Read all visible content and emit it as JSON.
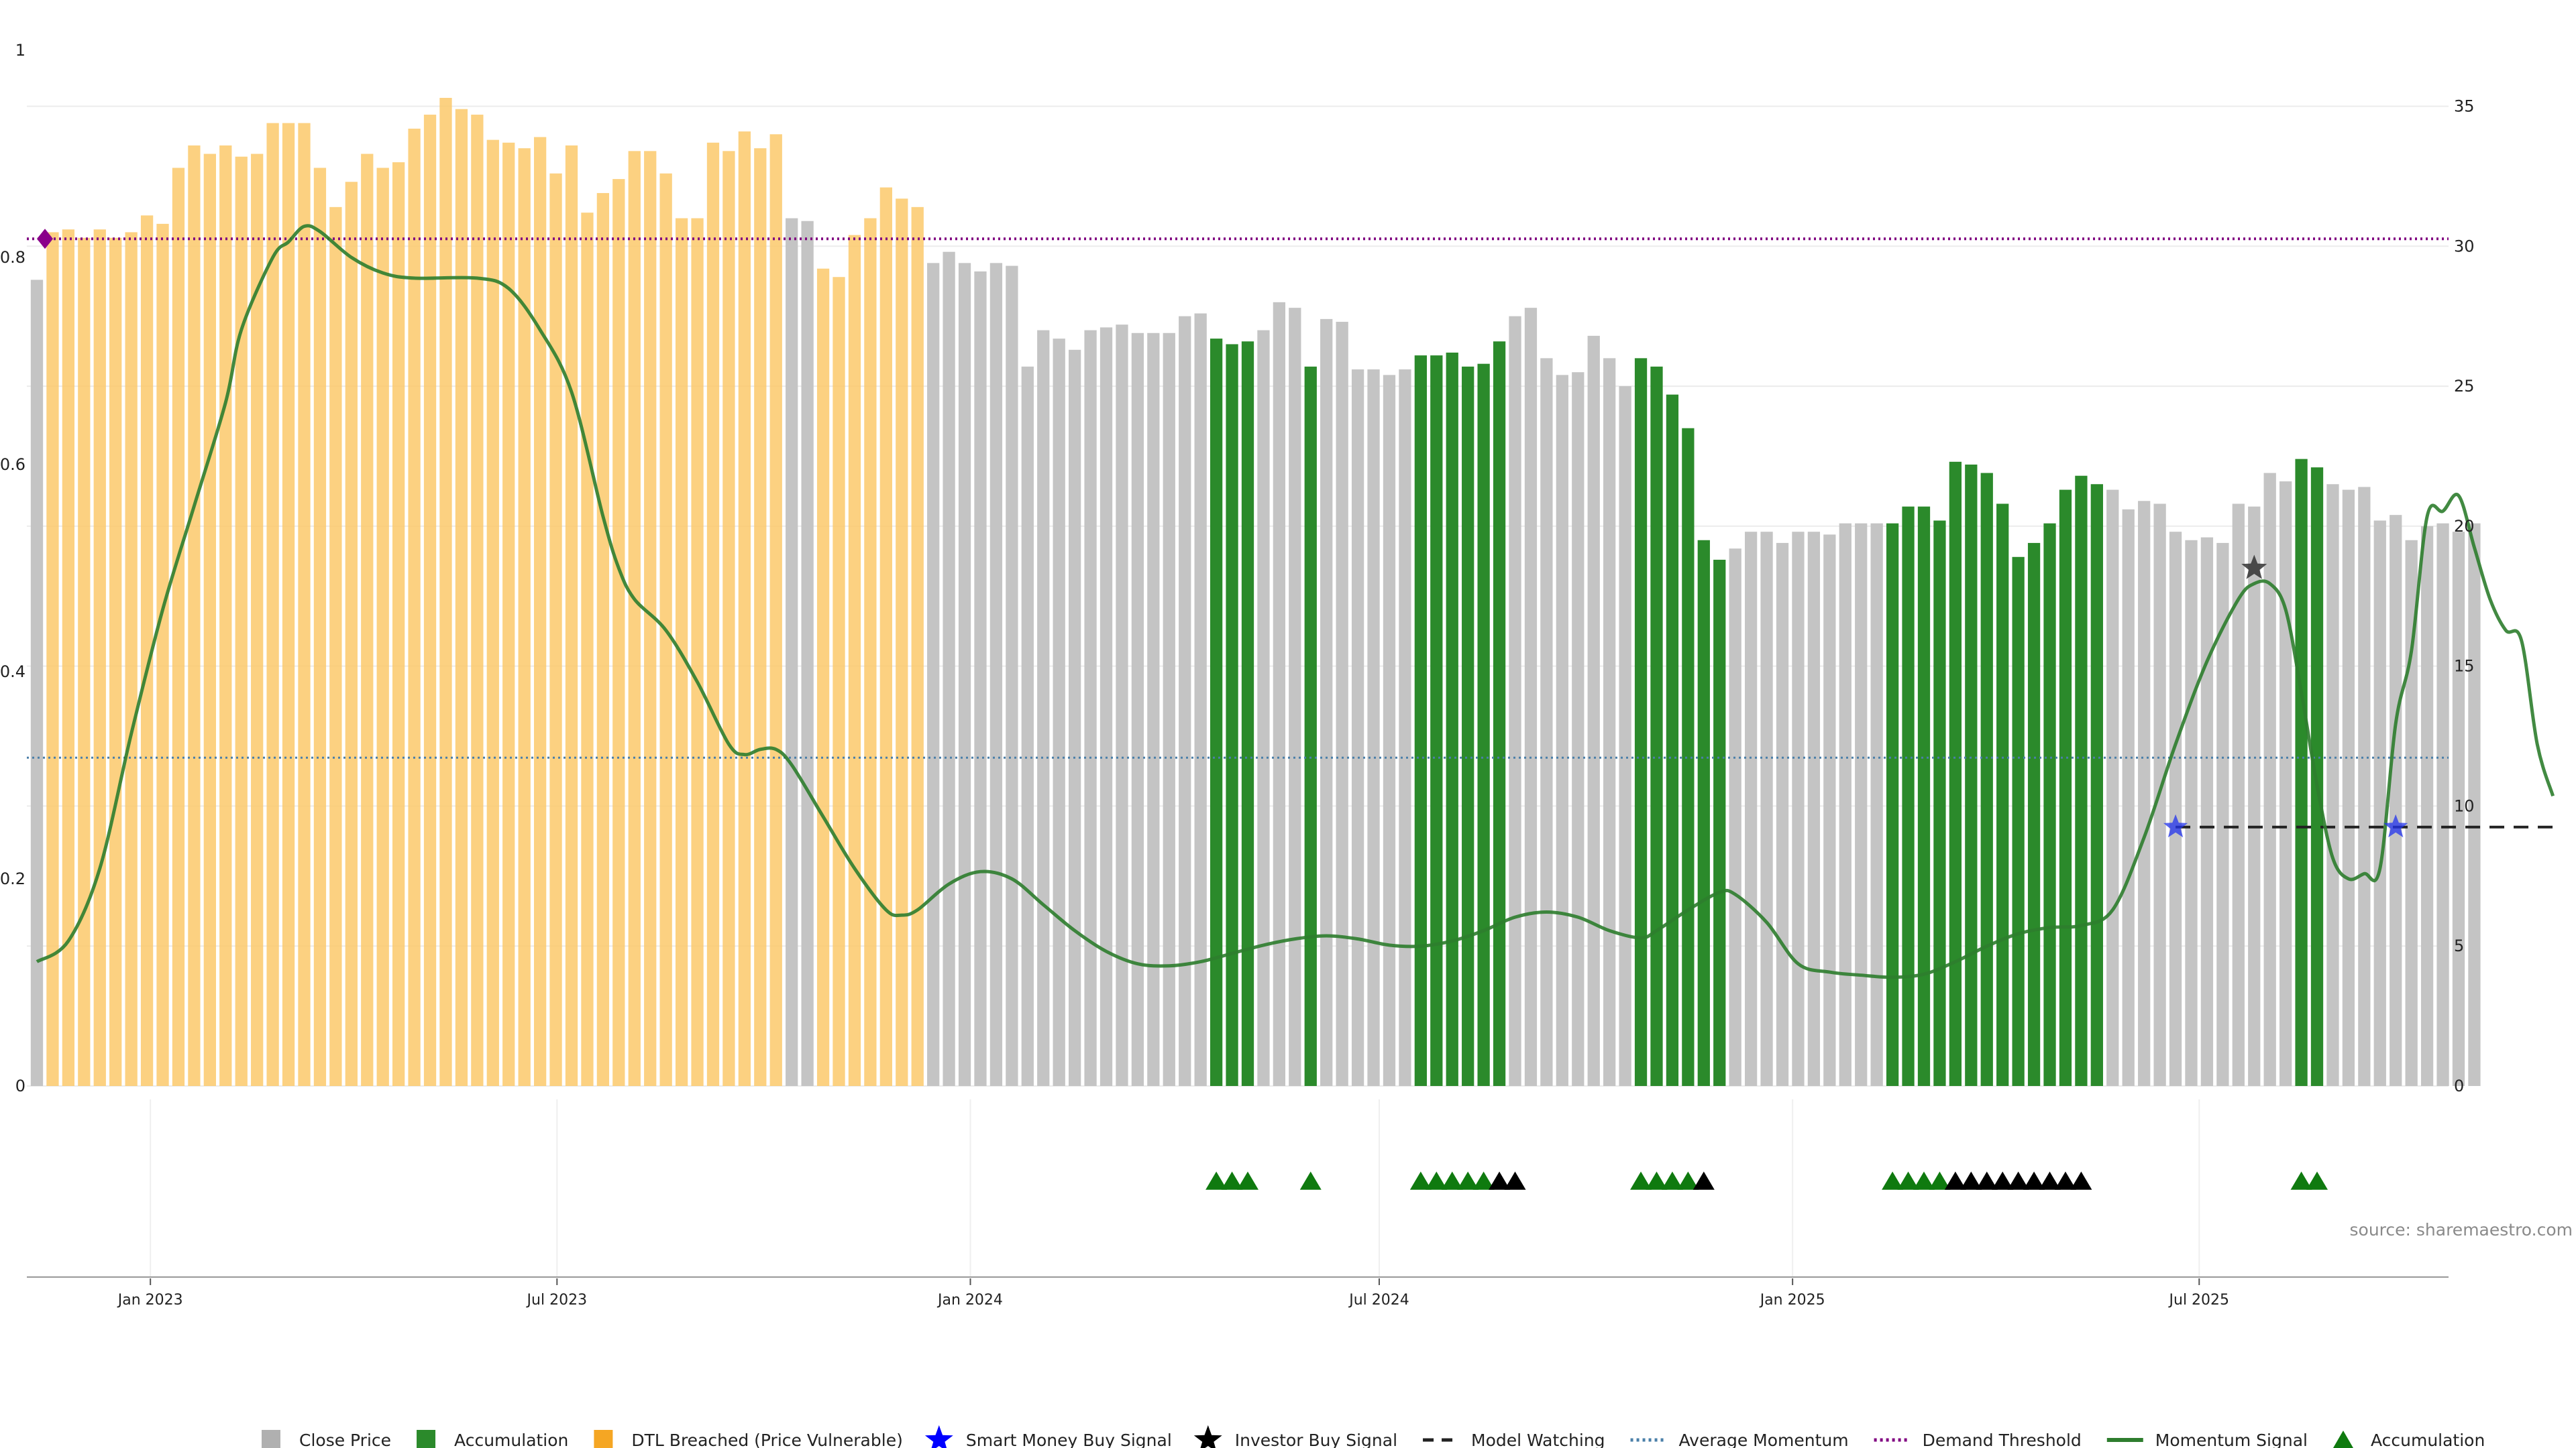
{
  "chart_data": {
    "type": "bar",
    "source": "source: sharemaestro.com",
    "left_axis": {
      "ticks": [
        0,
        0.2,
        0.4,
        0.6,
        0.8,
        1
      ],
      "tick_labels": [
        "0",
        "0.2",
        "0.4",
        "0.6",
        "0.8",
        "1"
      ],
      "range": [
        0,
        1
      ]
    },
    "right_axis": {
      "ticks": [
        0,
        5,
        10,
        15,
        20,
        25,
        30,
        35
      ],
      "range": [
        0,
        37
      ]
    },
    "x_axis": {
      "start": "2022-11-07",
      "end": "2025-10-20",
      "ticks": [
        {
          "date": "2023-01-01",
          "label": "Jan 2023"
        },
        {
          "date": "2023-07-01",
          "label": "Jul 2023"
        },
        {
          "date": "2024-01-01",
          "label": "Jan 2024"
        },
        {
          "date": "2024-07-01",
          "label": "Jul 2024"
        },
        {
          "date": "2025-01-01",
          "label": "Jan 2025"
        },
        {
          "date": "2025-07-01",
          "label": "Jul 2025"
        }
      ]
    },
    "close_price": {
      "start_week": "2022-11-07",
      "interval_days": 7,
      "values": [
        28.8,
        30.5,
        30.6,
        30.3,
        30.6,
        30.3,
        30.5,
        31.1,
        30.8,
        32.8,
        33.6,
        33.3,
        33.6,
        33.2,
        33.3,
        34.4,
        34.4,
        34.4,
        32.8,
        31.4,
        32.3,
        33.3,
        32.8,
        33.0,
        34.2,
        34.7,
        35.3,
        34.9,
        34.7,
        33.8,
        33.7,
        33.5,
        33.9,
        32.6,
        33.6,
        31.2,
        31.9,
        32.4,
        33.4,
        33.4,
        32.6,
        31.0,
        31.0,
        33.7,
        33.4,
        34.1,
        33.5,
        34.0,
        31.0,
        30.9,
        29.2,
        28.9,
        30.4,
        31.0,
        32.1,
        31.7,
        31.4,
        29.4,
        29.8,
        29.4,
        29.1,
        29.4,
        29.3,
        25.7,
        27.0,
        26.7,
        26.3,
        27.0,
        27.1,
        27.2,
        26.9,
        26.9,
        26.9,
        27.5,
        27.6,
        26.7,
        26.5,
        26.6,
        27.0,
        28.0,
        27.8,
        25.7,
        27.4,
        27.3,
        25.6,
        25.6,
        25.4,
        25.6,
        26.1,
        26.1,
        26.2,
        25.7,
        25.8,
        26.6,
        27.5,
        27.8,
        26.0,
        25.4,
        25.5,
        26.8,
        26.0,
        25.0,
        26.0,
        25.7,
        24.7,
        23.5,
        19.5,
        18.8,
        19.2,
        19.8,
        19.8,
        19.4,
        19.8,
        19.8,
        19.7,
        20.1,
        20.1,
        20.1,
        20.1,
        20.7,
        20.7,
        20.2,
        22.3,
        22.2,
        21.9,
        20.8,
        18.9,
        19.4,
        20.1,
        21.3,
        21.8,
        21.5,
        21.3,
        20.6,
        20.9,
        20.8,
        19.8,
        19.5,
        19.6,
        19.4,
        20.8,
        20.7,
        21.9,
        21.6,
        22.4,
        22.1,
        21.5,
        21.3,
        21.4,
        20.2,
        20.4,
        19.5,
        20.0,
        20.1,
        19.8,
        20.1
      ],
      "color": "#c4c4c4"
    },
    "dtl_breached_weeks": [
      1,
      2,
      3,
      4,
      5,
      6,
      7,
      8,
      9,
      10,
      11,
      12,
      13,
      14,
      15,
      16,
      17,
      18,
      19,
      20,
      21,
      22,
      23,
      24,
      25,
      26,
      27,
      28,
      29,
      30,
      31,
      32,
      33,
      34,
      35,
      36,
      37,
      38,
      39,
      40,
      41,
      42,
      43,
      44,
      45,
      46,
      47,
      50,
      51,
      52,
      53,
      54,
      55,
      56
    ],
    "accumulation_weeks": [
      75,
      76,
      77,
      81,
      88,
      89,
      90,
      91,
      92,
      93,
      102,
      103,
      104,
      105,
      106,
      107,
      118,
      119,
      120,
      121,
      122,
      123,
      124,
      125,
      126,
      127,
      128,
      129,
      130,
      131,
      144,
      145
    ],
    "momentum": {
      "points": [
        [
          0,
          0.12
        ],
        [
          2,
          0.14
        ],
        [
          4,
          0.21
        ],
        [
          6,
          0.34
        ],
        [
          8,
          0.46
        ],
        [
          10,
          0.56
        ],
        [
          12,
          0.66
        ],
        [
          13,
          0.73
        ],
        [
          15,
          0.8
        ],
        [
          16,
          0.815
        ],
        [
          17,
          0.83
        ],
        [
          18,
          0.825
        ],
        [
          20,
          0.8
        ],
        [
          22,
          0.785
        ],
        [
          24,
          0.78
        ],
        [
          28,
          0.78
        ],
        [
          30,
          0.77
        ],
        [
          32,
          0.73
        ],
        [
          34,
          0.67
        ],
        [
          36,
          0.55
        ],
        [
          37,
          0.5
        ],
        [
          38,
          0.47
        ],
        [
          40,
          0.44
        ],
        [
          42,
          0.39
        ],
        [
          44,
          0.33
        ],
        [
          45,
          0.32
        ],
        [
          46,
          0.325
        ],
        [
          47,
          0.325
        ],
        [
          48,
          0.31
        ],
        [
          50,
          0.26
        ],
        [
          52,
          0.21
        ],
        [
          54,
          0.17
        ],
        [
          55,
          0.165
        ],
        [
          56,
          0.17
        ],
        [
          58,
          0.195
        ],
        [
          60,
          0.207
        ],
        [
          62,
          0.2
        ],
        [
          64,
          0.175
        ],
        [
          66,
          0.15
        ],
        [
          68,
          0.13
        ],
        [
          70,
          0.118
        ],
        [
          72,
          0.116
        ],
        [
          74,
          0.12
        ],
        [
          76,
          0.128
        ],
        [
          78,
          0.136
        ],
        [
          80,
          0.142
        ],
        [
          82,
          0.145
        ],
        [
          84,
          0.142
        ],
        [
          86,
          0.136
        ],
        [
          88,
          0.135
        ],
        [
          90,
          0.14
        ],
        [
          92,
          0.15
        ],
        [
          94,
          0.163
        ],
        [
          96,
          0.168
        ],
        [
          98,
          0.163
        ],
        [
          100,
          0.15
        ],
        [
          102,
          0.143
        ],
        [
          103,
          0.15
        ],
        [
          105,
          0.17
        ],
        [
          107,
          0.187
        ],
        [
          108,
          0.185
        ],
        [
          110,
          0.158
        ],
        [
          112,
          0.118
        ],
        [
          114,
          0.11
        ],
        [
          116,
          0.107
        ],
        [
          118,
          0.105
        ],
        [
          120,
          0.108
        ],
        [
          122,
          0.12
        ],
        [
          124,
          0.135
        ],
        [
          126,
          0.147
        ],
        [
          128,
          0.153
        ],
        [
          130,
          0.155
        ],
        [
          132,
          0.17
        ],
        [
          134,
          0.24
        ],
        [
          136,
          0.33
        ],
        [
          138,
          0.41
        ],
        [
          140,
          0.47
        ],
        [
          141,
          0.485
        ],
        [
          142,
          0.485
        ],
        [
          143,
          0.46
        ],
        [
          144,
          0.38
        ],
        [
          145,
          0.29
        ],
        [
          146,
          0.22
        ],
        [
          147,
          0.2
        ],
        [
          148,
          0.205
        ],
        [
          149,
          0.21
        ],
        [
          150,
          0.35
        ],
        [
          151,
          0.42
        ],
        [
          152,
          0.55
        ],
        [
          153,
          0.555
        ],
        [
          154,
          0.57
        ],
        [
          155,
          0.52
        ],
        [
          156,
          0.47
        ],
        [
          157,
          0.44
        ],
        [
          158,
          0.43
        ],
        [
          159,
          0.33
        ],
        [
          160,
          0.28
        ]
      ],
      "color": "#2e7d2e"
    },
    "average_momentum": 0.317,
    "demand_threshold": 0.818,
    "model_watching": {
      "from_week": 136,
      "to_week": 160,
      "value": 0.25
    },
    "smart_money_signals": [
      {
        "week": 136,
        "value": 0.25
      },
      {
        "week": 150,
        "value": 0.25
      }
    ],
    "investor_signals": [
      {
        "week": 141,
        "value": 0.5
      }
    ],
    "demand_marker": {
      "week": 0,
      "value": 0.818
    },
    "signal_row": {
      "accumulation": [
        75,
        76,
        77,
        81,
        88,
        89,
        90,
        91,
        92,
        102,
        103,
        104,
        105,
        118,
        119,
        120,
        121,
        144,
        145
      ],
      "investor": [
        93,
        94,
        106,
        122,
        123,
        124,
        125,
        126,
        127,
        128,
        129,
        130
      ]
    },
    "legend": [
      {
        "key": "close",
        "label": "Close Price",
        "symbol": "square",
        "color": "#b0b0b0"
      },
      {
        "key": "accum",
        "label": "Accumulation",
        "symbol": "square",
        "color": "#2b8a2b"
      },
      {
        "key": "dtl",
        "label": "DTL Breached (Price Vulnerable)",
        "symbol": "square",
        "color": "#f5a623"
      },
      {
        "key": "smart",
        "label": "Smart Money Buy Signal",
        "symbol": "star",
        "color": "#0000ff"
      },
      {
        "key": "investor",
        "label": "Investor Buy Signal",
        "symbol": "star",
        "color": "#000000"
      },
      {
        "key": "watch",
        "label": "Model Watching",
        "symbol": "dash",
        "color": "#222222"
      },
      {
        "key": "avg",
        "label": "Average Momentum",
        "symbol": "dot",
        "color": "#4a7fa8"
      },
      {
        "key": "demand",
        "label": "Demand Threshold",
        "symbol": "dot",
        "color": "#800080"
      },
      {
        "key": "momentum",
        "label": "Momentum Signal",
        "symbol": "line",
        "color": "#2e7d2e"
      },
      {
        "key": "accum-tri",
        "label": "Accumulation",
        "symbol": "triangle",
        "color": "#0f7a0f"
      }
    ]
  }
}
